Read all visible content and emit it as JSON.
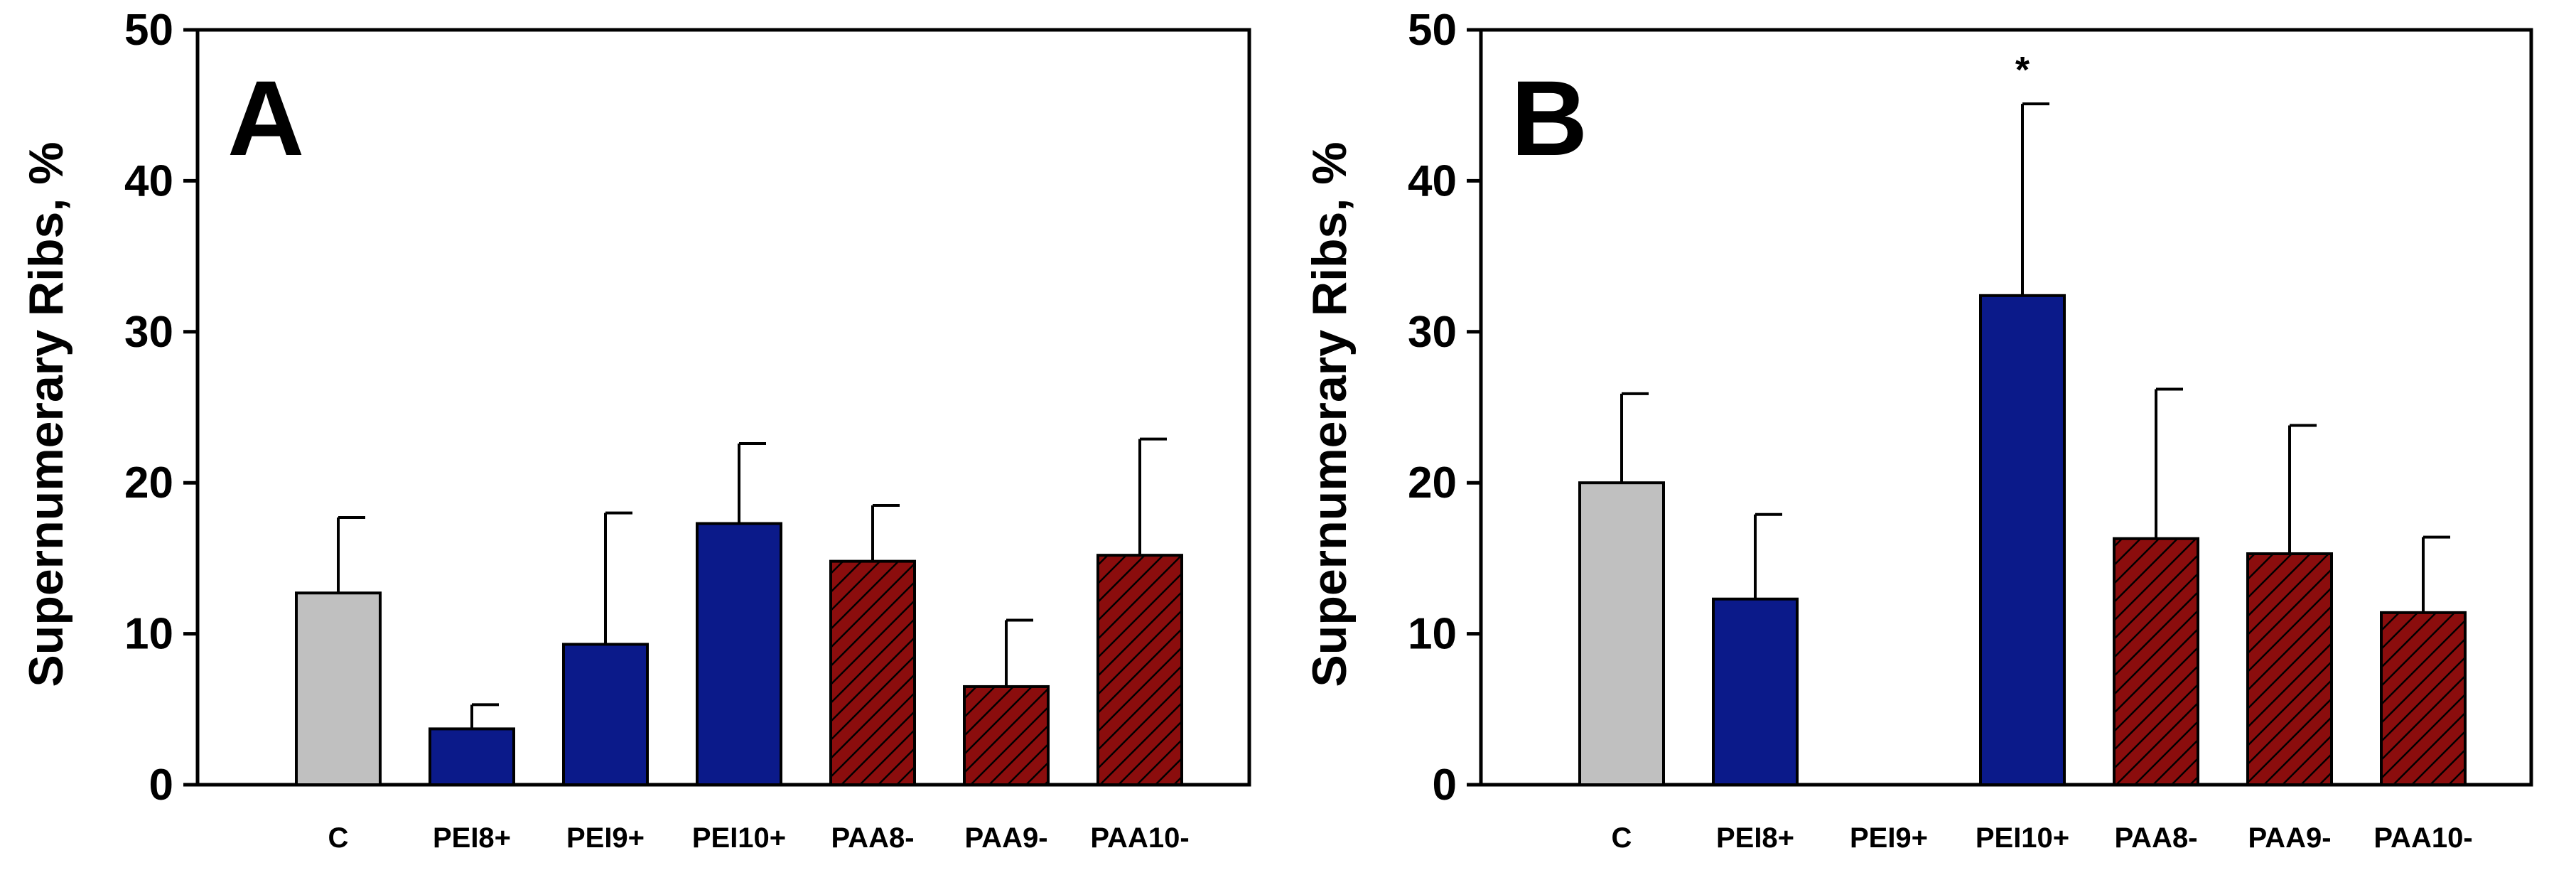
{
  "colors": {
    "control": "#c0c0c0",
    "pei": "#0b1a8a",
    "paa": "#8b0d0d",
    "axis": "#000000",
    "hatch": "#000000"
  },
  "chart_data": [
    {
      "type": "bar",
      "panel_label": "A",
      "ylabel": "Supernumerary Ribs, %",
      "ylim": [
        0,
        50
      ],
      "yticks": [
        "0",
        "10",
        "20",
        "30",
        "40",
        "50"
      ],
      "categories": [
        "C",
        "PEI8+",
        "PEI9+",
        "PEI10+",
        "PAA8-",
        "PAA9-",
        "PAA10-"
      ],
      "values": [
        12.7,
        3.7,
        9.3,
        17.3,
        14.8,
        6.5,
        15.2
      ],
      "errors": [
        5.0,
        1.6,
        8.7,
        5.3,
        3.7,
        4.4,
        7.7
      ],
      "groups": [
        "control",
        "pei",
        "pei",
        "pei",
        "paa",
        "paa",
        "paa"
      ],
      "annotations": [
        "",
        "",
        "",
        "",
        "",
        "",
        ""
      ]
    },
    {
      "type": "bar",
      "panel_label": "B",
      "ylabel": "Supernumerary Ribs, %",
      "ylim": [
        0,
        50
      ],
      "yticks": [
        "0",
        "10",
        "20",
        "30",
        "40",
        "50"
      ],
      "categories": [
        "C",
        "PEI8+",
        "PEI9+",
        "PEI10+",
        "PAA8-",
        "PAA9-",
        "PAA10-"
      ],
      "values": [
        20.0,
        12.3,
        0,
        32.4,
        16.3,
        15.3,
        11.4
      ],
      "errors": [
        5.9,
        5.6,
        0,
        12.7,
        9.9,
        8.5,
        5.0
      ],
      "groups": [
        "control",
        "pei",
        "pei",
        "pei",
        "paa",
        "paa",
        "paa"
      ],
      "annotations": [
        "",
        "",
        "",
        "*",
        "",
        "",
        ""
      ]
    }
  ]
}
